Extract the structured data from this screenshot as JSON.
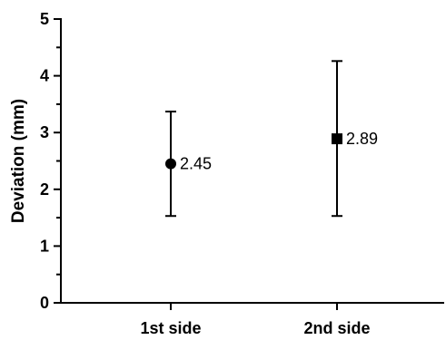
{
  "chart_data": {
    "type": "scatter",
    "title": "",
    "xlabel": "",
    "ylabel": "Deviation (mm)",
    "ylim": [
      0,
      5
    ],
    "y_major_ticks": [
      0,
      1,
      2,
      3,
      4,
      5
    ],
    "y_minor_ticks": [
      0.5,
      1.5,
      2.5,
      3.5,
      4.5
    ],
    "categories": [
      "1st side",
      "2nd side"
    ],
    "series": [
      {
        "points": [
          {
            "category": "1st side",
            "value": 2.45,
            "error_low": 1.53,
            "error_high": 3.37,
            "marker": "circle",
            "label": "2.45"
          },
          {
            "category": "2nd side",
            "value": 2.89,
            "error_low": 1.53,
            "error_high": 4.26,
            "marker": "square",
            "label": "2.89"
          }
        ]
      }
    ],
    "grid": false,
    "colors": {
      "marker": "#000000",
      "axis": "#000000"
    }
  }
}
